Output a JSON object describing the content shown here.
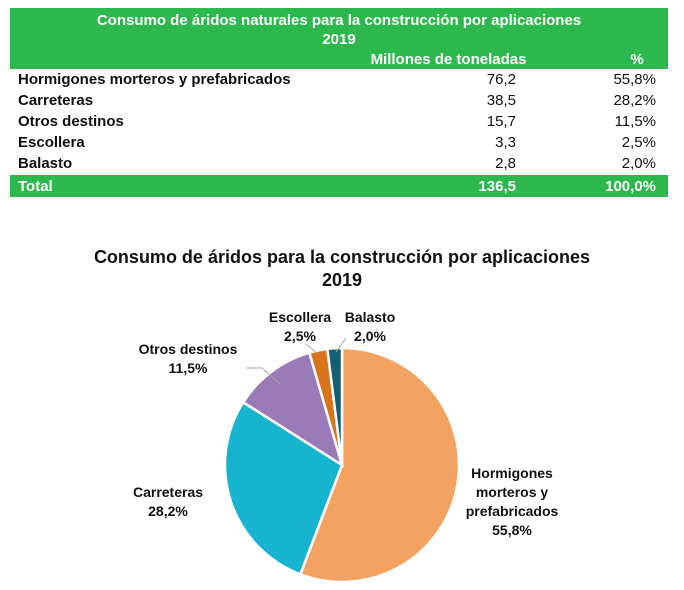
{
  "table": {
    "title": "Consumo de áridos naturales para la construcción por aplicaciones",
    "year": "2019",
    "col_values": "Millones de toneladas",
    "col_pct": "%",
    "rows": [
      {
        "label": "Hormigones morteros y prefabricados",
        "value": "76,2",
        "pct": "55,8%"
      },
      {
        "label": "Carreteras",
        "value": "38,5",
        "pct": "28,2%"
      },
      {
        "label": "Otros destinos",
        "value": "15,7",
        "pct": "11,5%"
      },
      {
        "label": "Escollera",
        "value": "3,3",
        "pct": "2,5%"
      },
      {
        "label": "Balasto",
        "value": "2,8",
        "pct": "2,0%"
      }
    ],
    "total": {
      "label": "Total",
      "value": "136,5",
      "pct": "100,0%"
    },
    "header_color": "#2db84d"
  },
  "chart_data": {
    "type": "pie",
    "title": "Consumo de áridos para la construcción por aplicaciones",
    "subtitle": "2019",
    "slices": [
      {
        "label_lines": [
          "Hormigones",
          "morteros y",
          "prefabricados"
        ],
        "pct_text": "55,8%",
        "value": 55.8,
        "color": "#f4a262"
      },
      {
        "label_lines": [
          "Carreteras"
        ],
        "pct_text": "28,2%",
        "value": 28.2,
        "color": "#16b4cf"
      },
      {
        "label_lines": [
          "Otros destinos"
        ],
        "pct_text": "11,5%",
        "value": 11.5,
        "color": "#9b7ab8"
      },
      {
        "label_lines": [
          "Escollera"
        ],
        "pct_text": "2,5%",
        "value": 2.5,
        "color": "#d9731c"
      },
      {
        "label_lines": [
          "Balasto"
        ],
        "pct_text": "2,0%",
        "value": 2.0,
        "color": "#145f73"
      }
    ]
  }
}
